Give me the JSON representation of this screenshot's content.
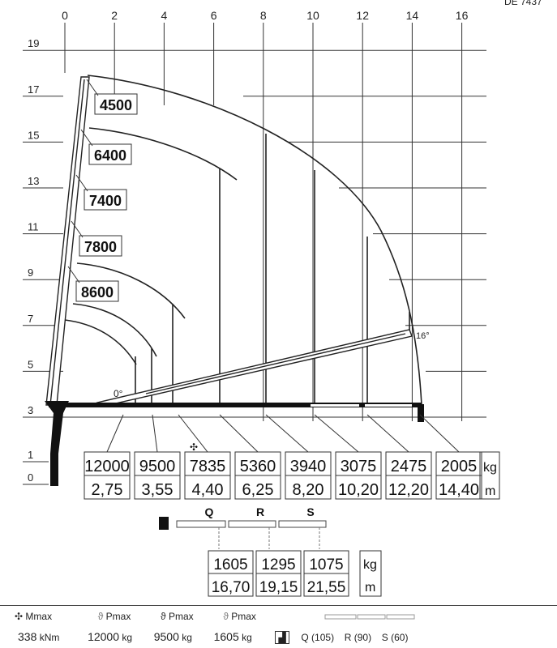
{
  "drawing_code": "DE 7437",
  "x_axis": {
    "ticks": [
      "0",
      "2",
      "4",
      "6",
      "8",
      "10",
      "12",
      "14",
      "16"
    ]
  },
  "y_axis": {
    "ticks": [
      "19",
      "17",
      "15",
      "13",
      "11",
      "9",
      "7",
      "5",
      "3",
      "1",
      "0"
    ]
  },
  "angles": {
    "min": "0°",
    "max": "16°"
  },
  "boom_capacities": [
    "4500",
    "6400",
    "7400",
    "7800",
    "8600"
  ],
  "load_table": {
    "loads": [
      "12000",
      "9500",
      "7835",
      "5360",
      "3940",
      "3075",
      "2475",
      "2005"
    ],
    "reaches": [
      "2,75",
      "3,55",
      "4,40",
      "6,25",
      "8,20",
      "10,20",
      "12,20",
      "14,40"
    ],
    "unit_load": "kg",
    "unit_reach": "m",
    "mark_on_third": "✣"
  },
  "extensions": {
    "labels": [
      "Q",
      "R",
      "S"
    ],
    "loads": [
      "1605",
      "1295",
      "1075"
    ],
    "reaches": [
      "16,70",
      "19,15",
      "21,55"
    ],
    "unit_load": "kg",
    "unit_reach": "m"
  },
  "footer": {
    "mmax_label": "Mmax",
    "pmax_label": "Pmax",
    "mmax_value": "338",
    "mmax_unit": "kNm",
    "pmax1_value": "12000",
    "pmax2_value": "9500",
    "pmax3_value": "1605",
    "pmax_unit": "kg",
    "ext_q": "Q (105)",
    "ext_r": "R (90)",
    "ext_s": "S (60)"
  }
}
